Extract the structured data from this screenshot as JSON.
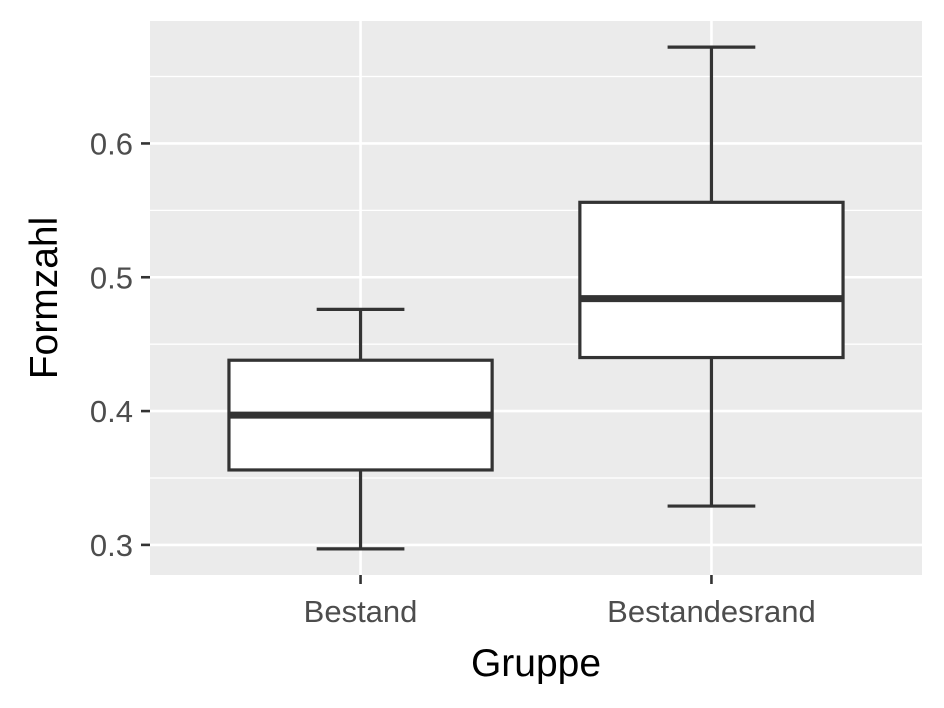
{
  "chart_data": {
    "type": "boxplot",
    "title": "",
    "xlabel": "Gruppe",
    "ylabel": "Formzahl",
    "categories": [
      "Bestand",
      "Bestandesrand"
    ],
    "boxes": [
      {
        "category": "Bestand",
        "min": 0.297,
        "q1": 0.356,
        "median": 0.397,
        "q3": 0.438,
        "max": 0.476
      },
      {
        "category": "Bestandesrand",
        "min": 0.329,
        "q1": 0.44,
        "median": 0.484,
        "q3": 0.556,
        "max": 0.672
      }
    ],
    "yticks": [
      0.3,
      0.4,
      0.5,
      0.6
    ],
    "ytick_labels": [
      "0.3",
      "0.4",
      "0.5",
      "0.6"
    ],
    "ylim": [
      0.2775,
      0.6915
    ],
    "grid": true,
    "legend": "none"
  }
}
